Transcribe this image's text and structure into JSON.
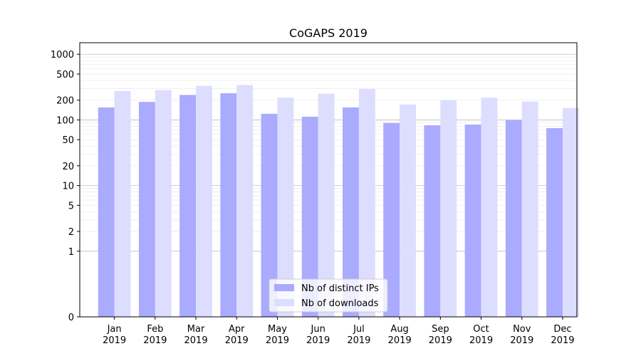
{
  "chart_data": {
    "type": "bar",
    "title": "CoGAPS 2019",
    "xlabel": "",
    "ylabel": "",
    "y_scale": "symlog",
    "ylim": [
      0,
      1500
    ],
    "y_ticks": [
      0,
      1,
      2,
      5,
      10,
      20,
      50,
      100,
      200,
      500,
      1000
    ],
    "y_tick_labels": [
      "0",
      "1",
      "2",
      "5",
      "10",
      "20",
      "50",
      "100",
      "200",
      "500",
      "1000"
    ],
    "grid": true,
    "legend_position": "bottom-center",
    "categories": [
      [
        "Jan",
        "2019"
      ],
      [
        "Feb",
        "2019"
      ],
      [
        "Mar",
        "2019"
      ],
      [
        "Apr",
        "2019"
      ],
      [
        "May",
        "2019"
      ],
      [
        "Jun",
        "2019"
      ],
      [
        "Jul",
        "2019"
      ],
      [
        "Aug",
        "2019"
      ],
      [
        "Sep",
        "2019"
      ],
      [
        "Oct",
        "2019"
      ],
      [
        "Nov",
        "2019"
      ],
      [
        "Dec",
        "2019"
      ]
    ],
    "series": [
      {
        "name": "Nb of distinct IPs",
        "color": "#aaaaff",
        "values": [
          155,
          188,
          240,
          255,
          124,
          112,
          155,
          90,
          83,
          85,
          99,
          75
        ]
      },
      {
        "name": "Nb of downloads",
        "color": "#ddddff",
        "values": [
          275,
          285,
          330,
          340,
          218,
          250,
          295,
          172,
          198,
          218,
          190,
          152
        ]
      }
    ]
  }
}
